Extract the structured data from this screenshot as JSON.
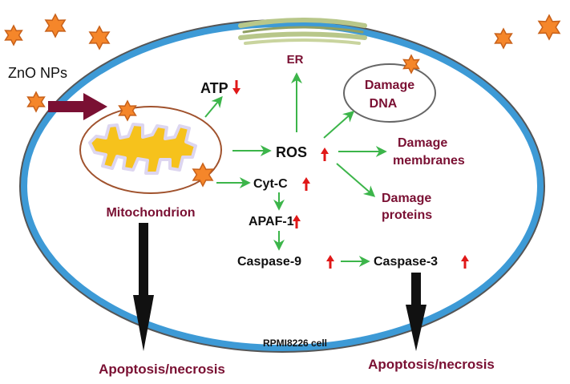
{
  "diagram": {
    "nanoparticle_label": "ZnO NPs",
    "cell_label": "RPMI8226 cell",
    "organelles": {
      "er": "ER",
      "mitochondrion": "Mitochondrion",
      "dna_line1": "Damage",
      "dna_line2": "DNA"
    },
    "molecules": {
      "atp": "ATP",
      "ros": "ROS",
      "cytc": "Cyt-C",
      "apaf1": "APAF-1",
      "casp9": "Caspase-9",
      "casp3": "Caspase-3"
    },
    "effects": {
      "membranes_line1": "Damage",
      "membranes_line2": "membranes",
      "proteins_line1": "Damage",
      "proteins_line2": "proteins"
    },
    "outcomes": {
      "left": "Apoptosis/necrosis",
      "right": "Apoptosis/necrosis"
    },
    "indicators": {
      "atp": "down",
      "ros": "up",
      "cytc": "up",
      "apaf1": "up",
      "casp9": "up",
      "casp3": "up"
    },
    "colors": {
      "membrane": "#3d9ad6",
      "membrane_outline": "#555555",
      "nanoparticle": "#f5862a",
      "nanoparticle_stroke": "#c8611a",
      "entry_arrow": "#7a1033",
      "pathway_arrow": "#3cb54a",
      "outcome_arrow": "#111111",
      "indicator": "#e01818",
      "label_maroon": "#7a1033",
      "mitochondrion_outline": "#a0522d",
      "cristae": "#f6c21c",
      "er": "#b8c78a"
    }
  }
}
